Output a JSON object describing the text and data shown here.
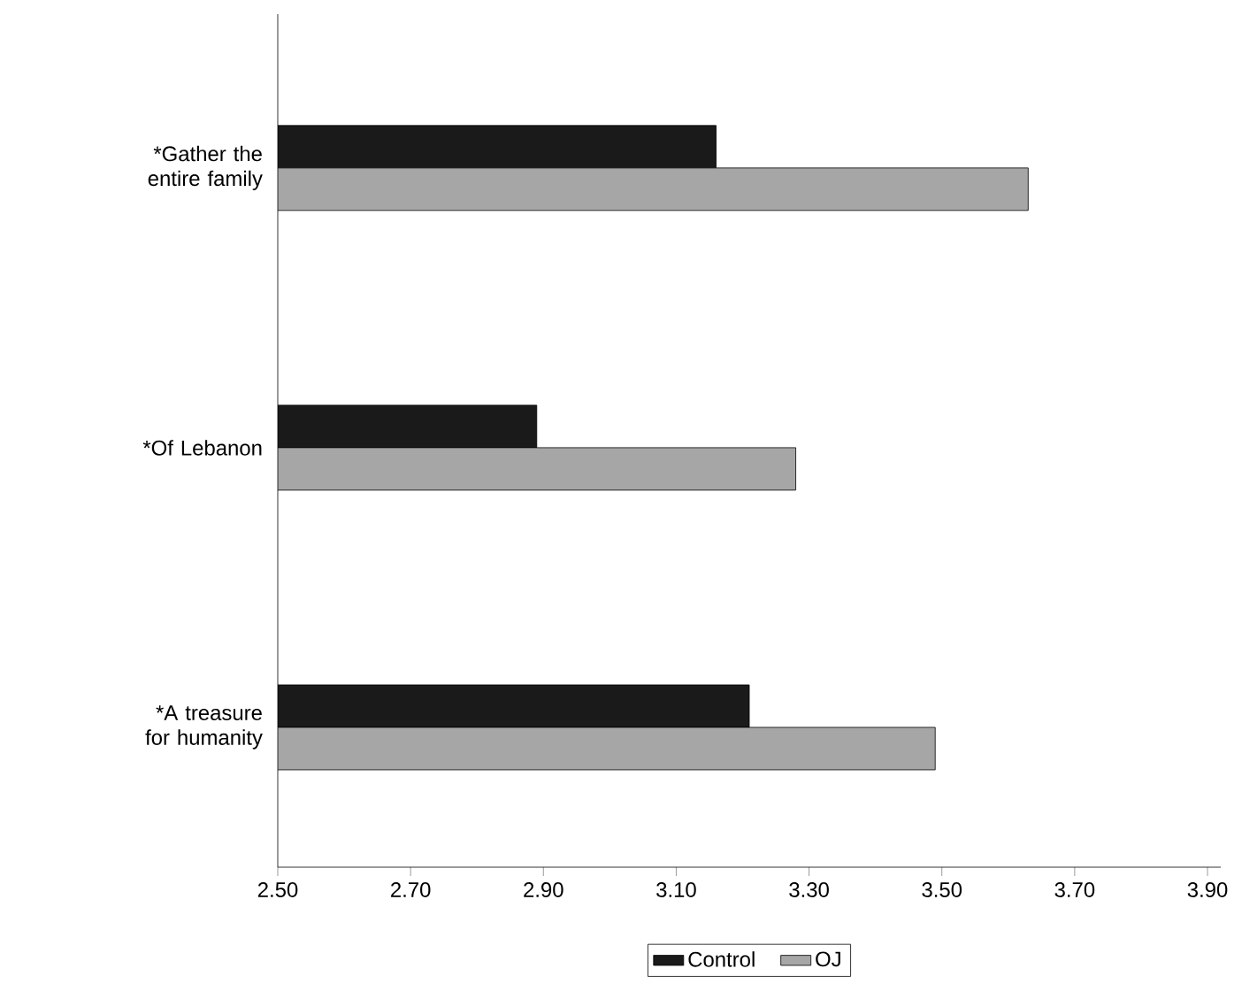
{
  "chart_data": {
    "type": "bar",
    "orientation": "horizontal",
    "categories": [
      "*Gather the entire family",
      "*Of Lebanon",
      "*A treasure for humanity"
    ],
    "series": [
      {
        "name": "Control",
        "color": "#1a1a1a",
        "values": [
          3.16,
          2.89,
          3.21
        ]
      },
      {
        "name": "OJ",
        "color": "#a6a6a6",
        "values": [
          3.63,
          3.28,
          3.49
        ]
      }
    ],
    "xlim": [
      2.5,
      3.92
    ],
    "xticks": [
      {
        "value": 2.5,
        "label": "2.50"
      },
      {
        "value": 2.7,
        "label": "2.70"
      },
      {
        "value": 2.9,
        "label": "2.90"
      },
      {
        "value": 3.1,
        "label": "3.10"
      },
      {
        "value": 3.3,
        "label": "3.30"
      },
      {
        "value": 3.5,
        "label": "3.50"
      },
      {
        "value": 3.7,
        "label": "3.70"
      },
      {
        "value": 3.9,
        "label": "3.90"
      }
    ],
    "legend": "bottom"
  }
}
